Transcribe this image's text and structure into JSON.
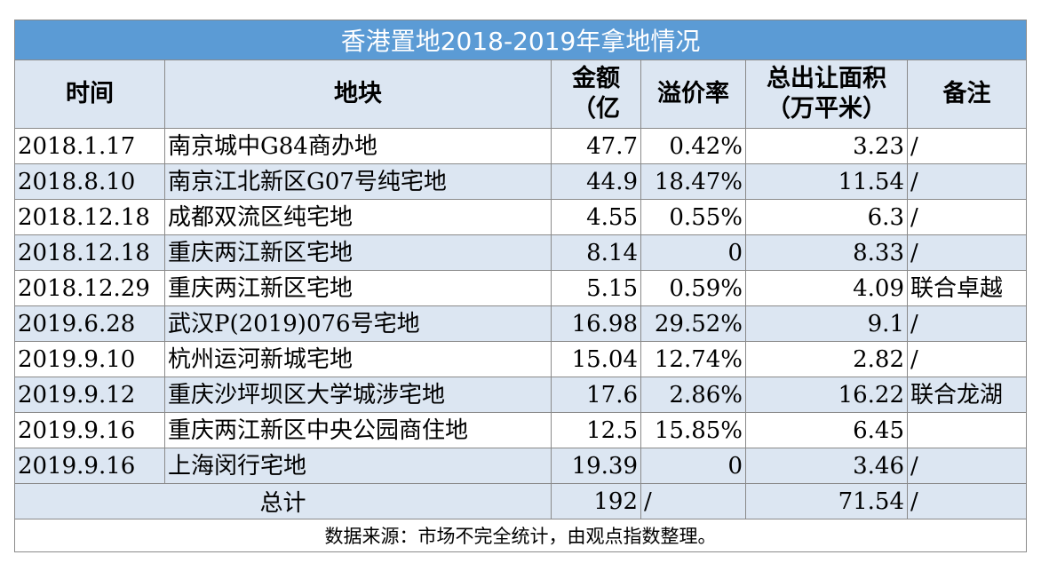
{
  "title": "香港置地2018-2019年拿地情况",
  "headers": {
    "time": "时间",
    "plot": "地块",
    "amount": "金额（亿",
    "premium": "溢价率",
    "area": "总出让面积（万平米）",
    "note": "备注"
  },
  "header_lines": {
    "amount": [
      "金额",
      "（亿"
    ],
    "area": [
      "总出让面积",
      "（万平米）"
    ]
  },
  "rows": [
    {
      "time": "2018.1.17",
      "plot": "南京城中G84商办地",
      "amount": "47.7",
      "premium": "0.42%",
      "area": "3.23",
      "note": "/"
    },
    {
      "time": "2018.8.10",
      "plot": "南京江北新区G07号纯宅地",
      "amount": "44.9",
      "premium": "18.47%",
      "area": "11.54",
      "note": "/"
    },
    {
      "time": "2018.12.18",
      "plot": "成都双流区纯宅地",
      "amount": "4.55",
      "premium": "0.55%",
      "area": "6.3",
      "note": "/"
    },
    {
      "time": "2018.12.18",
      "plot": "重庆两江新区宅地",
      "amount": "8.14",
      "premium": "0",
      "area": "8.33",
      "note": "/"
    },
    {
      "time": "2018.12.29",
      "plot": "重庆两江新区宅地",
      "amount": "5.15",
      "premium": "0.59%",
      "area": "4.09",
      "note": "联合卓越"
    },
    {
      "time": "2019.6.28",
      "plot": "武汉P(2019)076号宅地",
      "amount": "16.98",
      "premium": "29.52%",
      "area": "9.1",
      "note": "/"
    },
    {
      "time": "2019.9.10",
      "plot": "杭州运河新城宅地",
      "amount": "15.04",
      "premium": "12.74%",
      "area": "2.82",
      "note": "/"
    },
    {
      "time": "2019.9.12",
      "plot": "重庆沙坪坝区大学城涉宅地",
      "amount": "17.6",
      "premium": "2.86%",
      "area": "16.22",
      "note": "联合龙湖"
    },
    {
      "time": "2019.9.16",
      "plot": "重庆两江新区中央公园商住地",
      "amount": "12.5",
      "premium": "15.85%",
      "area": "6.45",
      "note": ""
    },
    {
      "time": "2019.9.16",
      "plot": "上海闵行宅地",
      "amount": "19.39",
      "premium": "0",
      "area": "3.46",
      "note": "/"
    }
  ],
  "total": {
    "label": "总计",
    "amount": "192",
    "premium": "/",
    "area": "71.54",
    "note": "/"
  },
  "source": "数据来源：市场不完全统计，由观点指数整理。",
  "colors": {
    "title_bg": "#5b9bd5",
    "shade_bg": "#dce6f2",
    "border": "#8a8a8a"
  }
}
